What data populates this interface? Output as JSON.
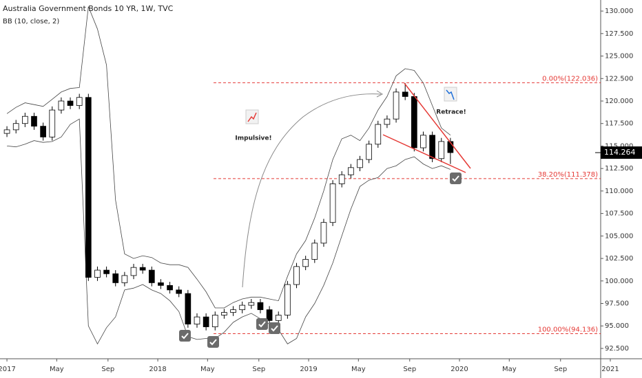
{
  "chart_data": {
    "type": "candlestick",
    "title": "Australia Government Bonds 10 YR, 1W, TVC",
    "indicator": "BB (10, close, 2)",
    "x": [
      2017.0,
      2017.06,
      2017.12,
      2017.18,
      2017.24,
      2017.3,
      2017.36,
      2017.42,
      2017.48,
      2017.54,
      2017.6,
      2017.66,
      2017.72,
      2017.78,
      2017.84,
      2017.9,
      2017.96,
      2018.02,
      2018.08,
      2018.14,
      2018.2,
      2018.26,
      2018.32,
      2018.38,
      2018.44,
      2018.5,
      2018.56,
      2018.62,
      2018.68,
      2018.74,
      2018.8,
      2018.86,
      2018.92,
      2018.98,
      2019.04,
      2019.1,
      2019.16,
      2019.22,
      2019.28,
      2019.34,
      2019.4,
      2019.46,
      2019.52,
      2019.58,
      2019.64,
      2019.7,
      2019.76,
      2019.82,
      2019.88,
      2019.94
    ],
    "open": [
      116.4,
      116.8,
      117.5,
      118.3,
      117.2,
      116.0,
      119.0,
      120.0,
      119.5,
      120.4,
      100.4,
      101.2,
      100.8,
      99.8,
      100.6,
      101.5,
      101.2,
      99.8,
      99.5,
      99.0,
      98.6,
      95.2,
      96.0,
      94.9,
      96.2,
      96.5,
      96.8,
      97.3,
      97.6,
      96.8,
      95.6,
      96.2,
      99.6,
      101.6,
      102.4,
      104.2,
      106.5,
      110.8,
      111.8,
      112.6,
      113.5,
      115.2,
      117.4,
      118.0,
      121.0,
      120.5,
      114.8,
      116.2,
      113.6,
      115.5
    ],
    "high": [
      117.2,
      117.9,
      118.7,
      118.7,
      117.6,
      119.4,
      120.4,
      120.4,
      120.8,
      120.8,
      101.6,
      101.6,
      101.2,
      101.0,
      101.9,
      101.9,
      101.6,
      100.2,
      99.9,
      99.4,
      99.0,
      96.4,
      96.4,
      96.6,
      96.9,
      97.2,
      97.7,
      98.0,
      98.0,
      97.2,
      96.6,
      100.0,
      102.0,
      102.8,
      104.6,
      106.9,
      111.2,
      112.2,
      113.0,
      113.9,
      115.6,
      117.8,
      118.4,
      121.4,
      122.0,
      120.9,
      116.6,
      116.6,
      115.9,
      115.9
    ],
    "low": [
      116.0,
      116.4,
      117.1,
      116.8,
      115.6,
      115.6,
      118.6,
      119.1,
      119.1,
      100.0,
      100.0,
      100.4,
      99.4,
      99.4,
      100.2,
      100.8,
      99.4,
      99.1,
      98.6,
      98.2,
      94.8,
      94.8,
      94.5,
      94.5,
      95.8,
      96.1,
      96.4,
      96.9,
      96.4,
      95.2,
      95.2,
      95.8,
      99.2,
      101.2,
      102.0,
      103.8,
      106.1,
      110.4,
      111.4,
      112.2,
      113.1,
      114.8,
      117.0,
      117.6,
      120.1,
      114.4,
      114.4,
      113.2,
      113.2,
      113.0
    ],
    "close": [
      116.8,
      117.5,
      118.3,
      117.2,
      116.0,
      119.0,
      120.0,
      119.5,
      120.4,
      100.4,
      101.2,
      100.8,
      99.8,
      100.6,
      101.5,
      101.2,
      99.8,
      99.5,
      99.0,
      98.6,
      95.2,
      96.0,
      94.9,
      96.2,
      96.5,
      96.8,
      97.3,
      97.6,
      96.8,
      95.6,
      96.2,
      99.6,
      101.6,
      102.4,
      104.2,
      106.5,
      110.8,
      111.8,
      112.6,
      113.5,
      115.2,
      117.4,
      118.0,
      121.0,
      120.5,
      114.8,
      116.2,
      113.6,
      115.5,
      114.264
    ],
    "bb_upper": [
      118.6,
      119.3,
      119.8,
      119.6,
      119.4,
      120.2,
      121.0,
      121.4,
      121.5,
      130.5,
      128.0,
      124.0,
      109.0,
      103.0,
      102.5,
      102.8,
      102.6,
      102.0,
      101.8,
      101.8,
      101.5,
      100.2,
      98.8,
      97.0,
      97.0,
      97.6,
      98.0,
      98.2,
      98.2,
      98.0,
      97.8,
      100.5,
      103.0,
      104.5,
      107.0,
      110.0,
      113.5,
      115.8,
      116.2,
      115.6,
      117.0,
      119.0,
      120.5,
      122.8,
      123.6,
      123.4,
      122.0,
      119.5,
      117.0,
      116.2
    ],
    "bb_lower": [
      115.0,
      114.9,
      115.2,
      115.6,
      115.4,
      115.5,
      116.0,
      117.4,
      118.0,
      95.0,
      93.0,
      94.8,
      96.0,
      99.0,
      99.2,
      99.6,
      99.0,
      98.6,
      97.8,
      96.6,
      93.8,
      93.5,
      93.6,
      93.6,
      94.3,
      95.4,
      96.0,
      96.4,
      95.8,
      95.2,
      94.6,
      93.0,
      93.6,
      96.0,
      97.5,
      99.5,
      102.0,
      105.0,
      108.0,
      110.5,
      111.2,
      111.5,
      112.5,
      112.8,
      113.5,
      113.8,
      113.0,
      112.5,
      112.8,
      112.4
    ],
    "last_price": 114.264,
    "fib_levels": [
      {
        "value": 122.036,
        "label": "0.00%(122.036)"
      },
      {
        "value": 111.378,
        "label": "38.20%(111.378)"
      },
      {
        "value": 94.136,
        "label": "100.00%(94.136)"
      }
    ],
    "annotations": [
      "Impulsive!",
      "Retrace!"
    ],
    "xlim": [
      2016.954,
      2020.936
    ],
    "ylim": [
      91.35,
      131.23
    ],
    "xticks": [
      2017,
      {
        "value": 2017.33,
        "label": "May"
      },
      {
        "value": 2017.67,
        "label": "Sep"
      },
      2018,
      {
        "value": 2018.33,
        "label": "May"
      },
      {
        "value": 2018.67,
        "label": "Sep"
      },
      2019,
      {
        "value": 2019.33,
        "label": "May"
      },
      {
        "value": 2019.67,
        "label": "Sep"
      },
      2020,
      {
        "value": 2020.33,
        "label": "May"
      },
      {
        "value": 2020.67,
        "label": "Sep"
      },
      2021
    ],
    "yticks": [
      {
        "value": 92.5,
        "label": "92.500"
      },
      {
        "value": 95,
        "label": "95.000"
      },
      {
        "value": 97.5,
        "label": "97.500"
      },
      {
        "value": 100,
        "label": "100.000"
      },
      {
        "value": 102.5,
        "label": "102.500"
      },
      {
        "value": 105,
        "label": "105.000"
      },
      {
        "value": 107.5,
        "label": "107.500"
      },
      {
        "value": 110,
        "label": "110.000"
      },
      {
        "value": 112.5,
        "label": "112.500"
      },
      {
        "value": 115,
        "label": "115.000"
      },
      {
        "value": 117.5,
        "label": "117.500"
      },
      {
        "value": 120,
        "label": "120.000"
      },
      {
        "value": 122.5,
        "label": "122.500"
      },
      {
        "value": 125,
        "label": "125.000"
      },
      {
        "value": 127.5,
        "label": "127.500"
      },
      {
        "value": 130,
        "label": "130.000"
      }
    ],
    "up_color": "#ffffff",
    "down_color": "#000000",
    "fib_color": "#e53935"
  }
}
